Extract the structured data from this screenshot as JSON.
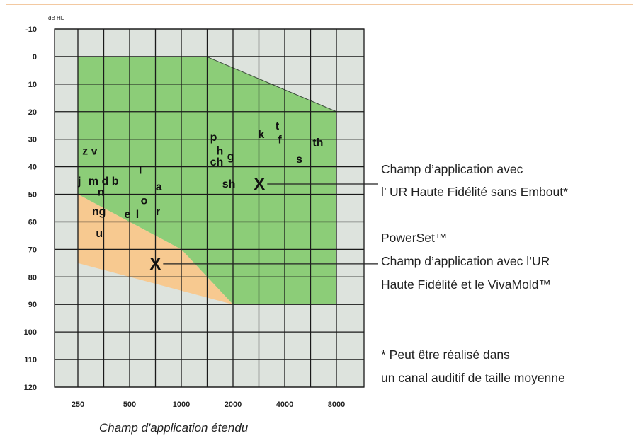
{
  "chart_data": {
    "type": "area",
    "unit_label": "dB HL",
    "xlabel": "Champ d'application étendu",
    "y_ticks": [
      "-10",
      "0",
      "10",
      "20",
      "30",
      "40",
      "50",
      "60",
      "70",
      "80",
      "90",
      "100",
      "110",
      "120"
    ],
    "x_ticks": [
      "250",
      "500",
      "1000",
      "2000",
      "4000",
      "8000"
    ],
    "ylim": [
      -10,
      120
    ],
    "y_inverted": true,
    "x_scale": "log2",
    "grid": true,
    "colors": {
      "green": "#8ccd78",
      "orange": "#f7c990",
      "gray": "#dde3dd",
      "grid": "#1a1a1a"
    },
    "regions": [
      {
        "name": "green",
        "points": [
          [
            250,
            0
          ],
          [
            1400,
            0
          ],
          [
            8000,
            20
          ],
          [
            8000,
            90
          ],
          [
            2000,
            90
          ],
          [
            1000,
            70
          ],
          [
            250,
            50
          ]
        ]
      },
      {
        "name": "orange",
        "points": [
          [
            250,
            50
          ],
          [
            1000,
            70
          ],
          [
            2000,
            90
          ],
          [
            500,
            80
          ],
          [
            250,
            75
          ]
        ]
      }
    ],
    "speech_sounds": [
      {
        "label": "z v",
        "x": 265,
        "y": 34
      },
      {
        "label": "j",
        "x": 250,
        "y": 45
      },
      {
        "label": "m d b",
        "x": 288,
        "y": 45
      },
      {
        "label": "l",
        "x": 566,
        "y": 41
      },
      {
        "label": "a",
        "x": 710,
        "y": 47
      },
      {
        "label": "n",
        "x": 325,
        "y": 49
      },
      {
        "label": "o",
        "x": 580,
        "y": 52
      },
      {
        "label": "ng",
        "x": 302,
        "y": 56
      },
      {
        "label": "e",
        "x": 465,
        "y": 57
      },
      {
        "label": "l",
        "x": 543,
        "y": 57
      },
      {
        "label": "r",
        "x": 710,
        "y": 56
      },
      {
        "label": "u",
        "x": 318,
        "y": 64
      },
      {
        "label": "p",
        "x": 1470,
        "y": 29
      },
      {
        "label": "h",
        "x": 1600,
        "y": 34
      },
      {
        "label": "g",
        "x": 1850,
        "y": 36
      },
      {
        "label": "ch",
        "x": 1470,
        "y": 38
      },
      {
        "label": "sh",
        "x": 1730,
        "y": 46
      },
      {
        "label": "k",
        "x": 2800,
        "y": 28
      },
      {
        "label": "t",
        "x": 3530,
        "y": 25
      },
      {
        "label": "f",
        "x": 3650,
        "y": 30
      },
      {
        "label": "s",
        "x": 4660,
        "y": 37
      },
      {
        "label": "th",
        "x": 5810,
        "y": 31
      }
    ],
    "markers": [
      {
        "label": "X",
        "x": 2850,
        "y": 46
      },
      {
        "label": "X",
        "x": 706,
        "y": 75
      }
    ]
  },
  "annotations": [
    {
      "lines": [
        "Champ d’application avec",
        "l’ UR Haute Fidélité sans Embout*"
      ]
    },
    {
      "lines": [
        "PowerSet™",
        "Champ d’application avec l’UR",
        "Haute Fidélité et le VivaMold™"
      ]
    },
    {
      "lines": [
        "* Peut être réalisé dans",
        "un canal auditif de taille moyenne"
      ]
    }
  ]
}
